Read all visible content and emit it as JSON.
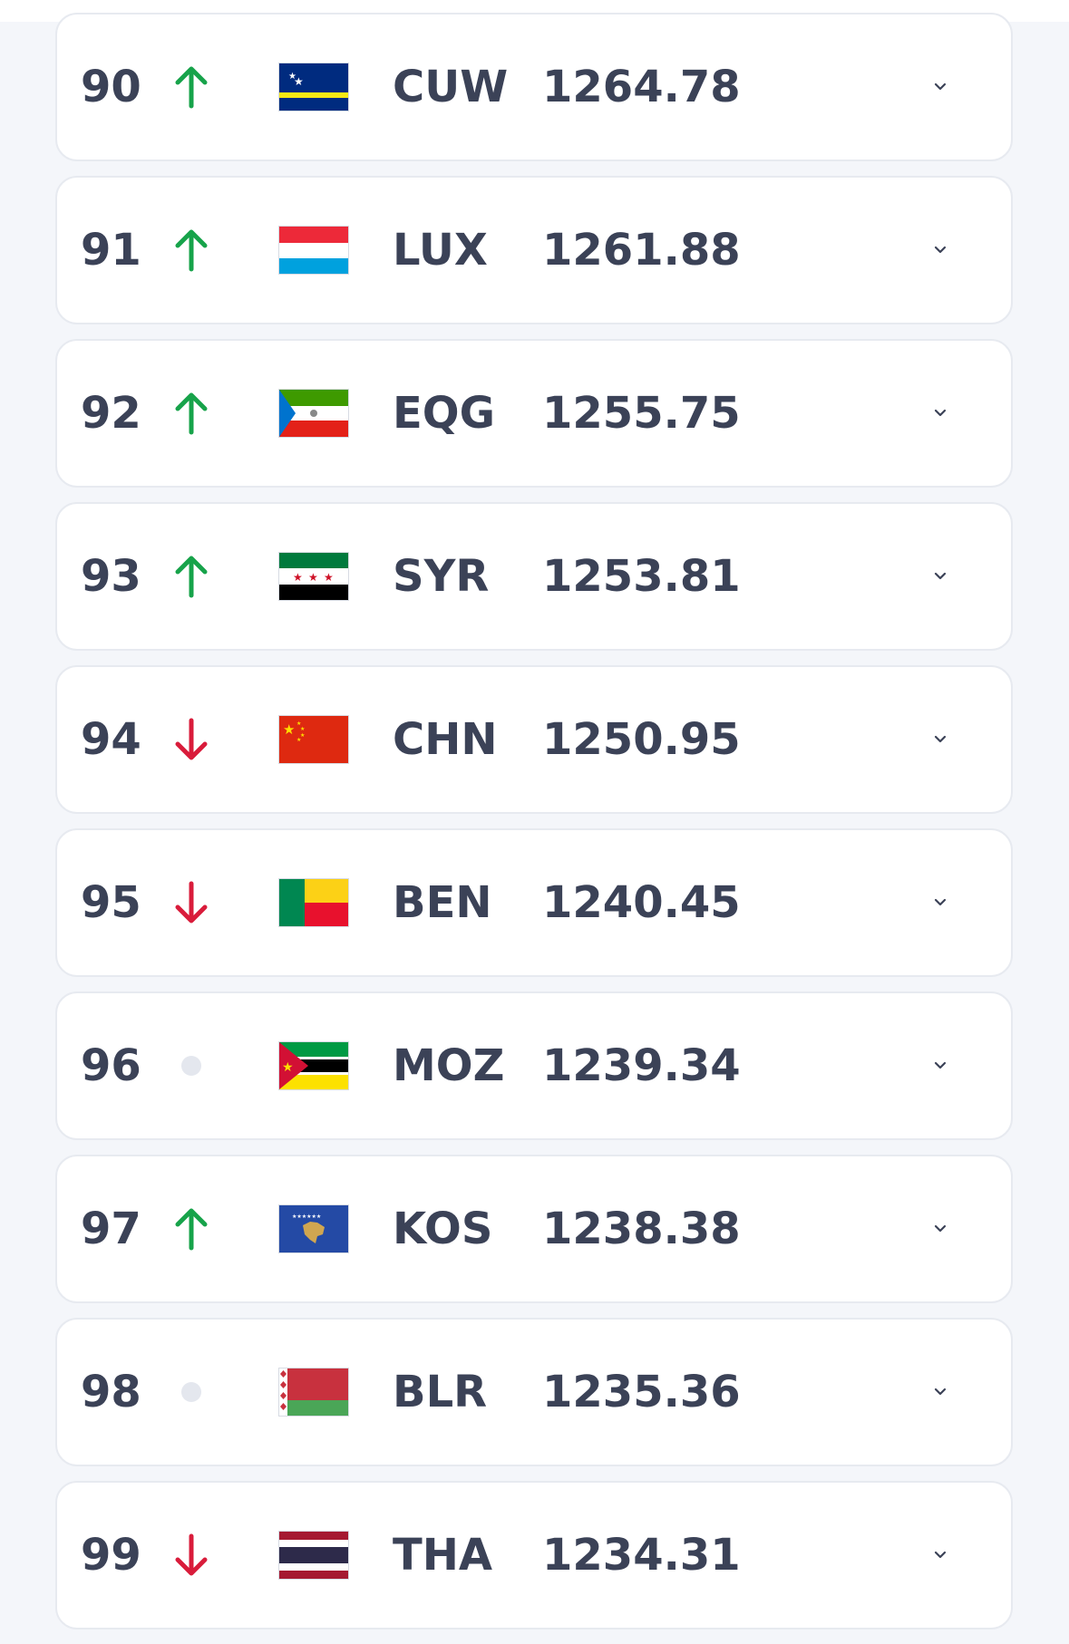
{
  "rankings": [
    {
      "rank": "90",
      "trend": "up",
      "code": "CUW",
      "points": "1264.78",
      "flag_icon": "curacao-flag-icon"
    },
    {
      "rank": "91",
      "trend": "up",
      "code": "LUX",
      "points": "1261.88",
      "flag_icon": "luxembourg-flag-icon"
    },
    {
      "rank": "92",
      "trend": "up",
      "code": "EQG",
      "points": "1255.75",
      "flag_icon": "equatorial-guinea-flag-icon"
    },
    {
      "rank": "93",
      "trend": "up",
      "code": "SYR",
      "points": "1253.81",
      "flag_icon": "syria-flag-icon"
    },
    {
      "rank": "94",
      "trend": "down",
      "code": "CHN",
      "points": "1250.95",
      "flag_icon": "china-flag-icon"
    },
    {
      "rank": "95",
      "trend": "down",
      "code": "BEN",
      "points": "1240.45",
      "flag_icon": "benin-flag-icon"
    },
    {
      "rank": "96",
      "trend": "same",
      "code": "MOZ",
      "points": "1239.34",
      "flag_icon": "mozambique-flag-icon"
    },
    {
      "rank": "97",
      "trend": "up",
      "code": "KOS",
      "points": "1238.38",
      "flag_icon": "kosovo-flag-icon"
    },
    {
      "rank": "98",
      "trend": "same",
      "code": "BLR",
      "points": "1235.36",
      "flag_icon": "belarus-flag-icon"
    },
    {
      "rank": "99",
      "trend": "down",
      "code": "THA",
      "points": "1234.31",
      "flag_icon": "thailand-flag-icon"
    }
  ],
  "colors": {
    "text": "#3b4257",
    "up": "#17a34a",
    "down": "#d91c3b",
    "same": "#e4e7ee",
    "card_border": "#e7eaf0",
    "background": "#f4f6fa"
  }
}
